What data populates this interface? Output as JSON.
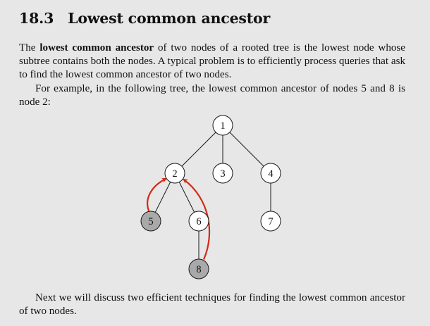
{
  "section": {
    "number": "18.3",
    "title": "Lowest common ancestor"
  },
  "paragraph1": {
    "before": "The ",
    "term": "lowest common ancestor",
    "after": " of two nodes of a rooted tree is the lowest node whose subtree contains both the nodes. A typical problem is to efficiently process queries that ask to find the lowest common ancestor of two nodes."
  },
  "paragraph2": "For example, in the following tree, the lowest common ancestor of nodes 5 and 8 is node 2:",
  "paragraph3": "Next we will discuss two efficient techniques for finding the lowest common ancestor of two nodes.",
  "tree": {
    "nodes": [
      {
        "id": "1",
        "highlighted": false
      },
      {
        "id": "2",
        "highlighted": false
      },
      {
        "id": "3",
        "highlighted": false
      },
      {
        "id": "4",
        "highlighted": false
      },
      {
        "id": "5",
        "highlighted": true
      },
      {
        "id": "6",
        "highlighted": false
      },
      {
        "id": "7",
        "highlighted": false
      },
      {
        "id": "8",
        "highlighted": true
      }
    ],
    "edges": [
      [
        "1",
        "2"
      ],
      [
        "1",
        "3"
      ],
      [
        "1",
        "4"
      ],
      [
        "2",
        "5"
      ],
      [
        "2",
        "6"
      ],
      [
        "4",
        "7"
      ],
      [
        "6",
        "8"
      ]
    ],
    "arrows": [
      {
        "from": "5",
        "to": "2"
      },
      {
        "from": "8",
        "to": "2"
      }
    ],
    "colors": {
      "highlight_fill": "#a9a9a9",
      "node_fill": "#ffffff",
      "stroke": "#1a1a1a",
      "arrow": "#d42a16"
    }
  }
}
